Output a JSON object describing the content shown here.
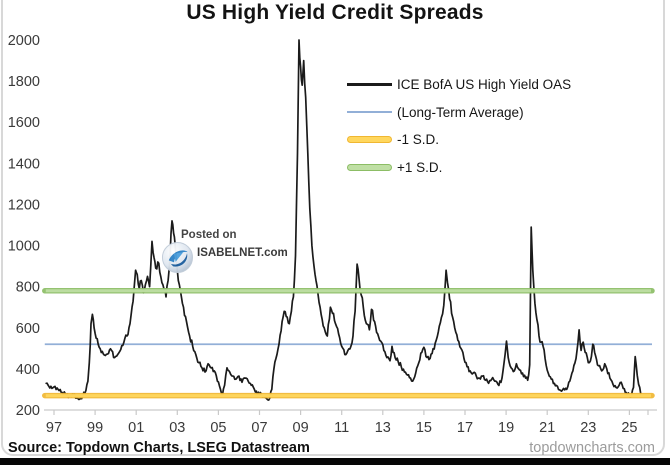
{
  "header": {
    "title": "US High Yield Credit Spreads"
  },
  "watermark": {
    "line1": "Posted on",
    "line2": "ISABELNET.com"
  },
  "footer": {
    "source": "Source: Topdown Charts, LSEG Datastream",
    "website": "topdowncharts.com"
  },
  "colors": {
    "series": "#1b1b1b",
    "average_line": "#92afd7",
    "minus_sd_fill": "#ffd75e",
    "minus_sd_edge": "#f0b732",
    "plus_sd_fill": "#bfdfa4",
    "plus_sd_edge": "#8cbd65",
    "axis": "#c9c9c9",
    "tick_text": "#3a3a3a"
  },
  "chart_data": {
    "type": "line",
    "title": "US High Yield Credit Spreads",
    "xlabel": "",
    "ylabel": "",
    "grid": false,
    "y_axis": {
      "min": 200,
      "max": 2000,
      "ticks": [
        2000,
        1800,
        1600,
        1400,
        1200,
        1000,
        800,
        600,
        400,
        200
      ]
    },
    "x_axis": {
      "tick_years": [
        1997,
        1999,
        2001,
        2003,
        2005,
        2007,
        2009,
        2011,
        2013,
        2015,
        2017,
        2019,
        2021,
        2023,
        2025
      ],
      "tick_labels": [
        "97",
        "99",
        "01",
        "03",
        "05",
        "07",
        "09",
        "11",
        "13",
        "15",
        "17",
        "19",
        "21",
        "23",
        "25"
      ],
      "start": 1996.6,
      "end": 2025.6
    },
    "legend": {
      "position": "upper-right",
      "entries": [
        {
          "label": "ICE BofA US High Yield OAS",
          "swatch": "line",
          "thickness": 2.6,
          "color": "#1b1b1b"
        },
        {
          "label": "(Long-Term Average)",
          "swatch": "line",
          "thickness": 2.2,
          "color": "#92afd7"
        },
        {
          "label": "-1 S.D.",
          "swatch": "band",
          "color": "#ffd75e",
          "edge": "#f0b732"
        },
        {
          "label": "+1 S.D.",
          "swatch": "band",
          "color": "#bfdfa4",
          "edge": "#8cbd65"
        }
      ]
    },
    "reference_lines": {
      "long_term_average": 520,
      "minus_1_sd": 270,
      "plus_1_sd": 780
    },
    "series": [
      {
        "name": "ICE BofA US High Yield OAS",
        "color": "#1b1b1b",
        "points": [
          [
            1996.62,
            330
          ],
          [
            1996.75,
            315
          ],
          [
            1996.9,
            305
          ],
          [
            1997.05,
            315
          ],
          [
            1997.2,
            300
          ],
          [
            1997.4,
            285
          ],
          [
            1997.6,
            272
          ],
          [
            1997.8,
            268
          ],
          [
            1997.95,
            275
          ],
          [
            1998.1,
            258
          ],
          [
            1998.25,
            252
          ],
          [
            1998.4,
            268
          ],
          [
            1998.55,
            295
          ],
          [
            1998.65,
            340
          ],
          [
            1998.72,
            430
          ],
          [
            1998.8,
            620
          ],
          [
            1998.87,
            665
          ],
          [
            1998.95,
            600
          ],
          [
            1999.05,
            550
          ],
          [
            1999.2,
            505
          ],
          [
            1999.35,
            485
          ],
          [
            1999.5,
            465
          ],
          [
            1999.65,
            475
          ],
          [
            1999.8,
            490
          ],
          [
            1999.95,
            455
          ],
          [
            2000.1,
            470
          ],
          [
            2000.25,
            495
          ],
          [
            2000.4,
            530
          ],
          [
            2000.55,
            560
          ],
          [
            2000.7,
            620
          ],
          [
            2000.85,
            730
          ],
          [
            2000.97,
            880
          ],
          [
            2001.05,
            860
          ],
          [
            2001.15,
            790
          ],
          [
            2001.25,
            830
          ],
          [
            2001.35,
            770
          ],
          [
            2001.45,
            810
          ],
          [
            2001.55,
            850
          ],
          [
            2001.65,
            800
          ],
          [
            2001.77,
            1020
          ],
          [
            2001.87,
            940
          ],
          [
            2001.95,
            890
          ],
          [
            2002.05,
            920
          ],
          [
            2002.15,
            870
          ],
          [
            2002.25,
            820
          ],
          [
            2002.35,
            790
          ],
          [
            2002.45,
            750
          ],
          [
            2002.55,
            830
          ],
          [
            2002.65,
            950
          ],
          [
            2002.74,
            1120
          ],
          [
            2002.82,
            1060
          ],
          [
            2002.9,
            1000
          ],
          [
            2003.0,
            880
          ],
          [
            2003.15,
            780
          ],
          [
            2003.3,
            700
          ],
          [
            2003.45,
            630
          ],
          [
            2003.6,
            560
          ],
          [
            2003.75,
            510
          ],
          [
            2003.9,
            470
          ],
          [
            2004.05,
            430
          ],
          [
            2004.2,
            405
          ],
          [
            2004.35,
            385
          ],
          [
            2004.5,
            425
          ],
          [
            2004.65,
            405
          ],
          [
            2004.8,
            390
          ],
          [
            2004.95,
            340
          ],
          [
            2005.1,
            300
          ],
          [
            2005.2,
            275
          ],
          [
            2005.3,
            320
          ],
          [
            2005.42,
            405
          ],
          [
            2005.55,
            385
          ],
          [
            2005.7,
            365
          ],
          [
            2005.85,
            350
          ],
          [
            2006.0,
            365
          ],
          [
            2006.15,
            335
          ],
          [
            2006.3,
            355
          ],
          [
            2006.45,
            340
          ],
          [
            2006.6,
            320
          ],
          [
            2006.75,
            300
          ],
          [
            2006.9,
            275
          ],
          [
            2007.05,
            285
          ],
          [
            2007.2,
            265
          ],
          [
            2007.35,
            255
          ],
          [
            2007.45,
            248
          ],
          [
            2007.6,
            300
          ],
          [
            2007.7,
            400
          ],
          [
            2007.8,
            450
          ],
          [
            2007.95,
            520
          ],
          [
            2008.1,
            630
          ],
          [
            2008.2,
            680
          ],
          [
            2008.3,
            655
          ],
          [
            2008.45,
            620
          ],
          [
            2008.55,
            680
          ],
          [
            2008.65,
            750
          ],
          [
            2008.75,
            950
          ],
          [
            2008.85,
            1450
          ],
          [
            2008.92,
            2000
          ],
          [
            2009.0,
            1870
          ],
          [
            2009.08,
            1780
          ],
          [
            2009.15,
            1900
          ],
          [
            2009.25,
            1720
          ],
          [
            2009.35,
            1450
          ],
          [
            2009.45,
            1180
          ],
          [
            2009.55,
            1000
          ],
          [
            2009.65,
            900
          ],
          [
            2009.75,
            830
          ],
          [
            2009.85,
            760
          ],
          [
            2009.95,
            700
          ],
          [
            2010.05,
            640
          ],
          [
            2010.15,
            600
          ],
          [
            2010.3,
            560
          ],
          [
            2010.45,
            700
          ],
          [
            2010.55,
            670
          ],
          [
            2010.7,
            620
          ],
          [
            2010.85,
            570
          ],
          [
            2011.0,
            510
          ],
          [
            2011.15,
            470
          ],
          [
            2011.3,
            490
          ],
          [
            2011.45,
            510
          ],
          [
            2011.55,
            560
          ],
          [
            2011.65,
            680
          ],
          [
            2011.75,
            910
          ],
          [
            2011.85,
            830
          ],
          [
            2011.95,
            760
          ],
          [
            2012.05,
            700
          ],
          [
            2012.2,
            620
          ],
          [
            2012.35,
            590
          ],
          [
            2012.45,
            690
          ],
          [
            2012.6,
            630
          ],
          [
            2012.75,
            570
          ],
          [
            2012.9,
            535
          ],
          [
            2013.05,
            490
          ],
          [
            2013.2,
            455
          ],
          [
            2013.35,
            440
          ],
          [
            2013.45,
            510
          ],
          [
            2013.6,
            455
          ],
          [
            2013.75,
            435
          ],
          [
            2013.9,
            410
          ],
          [
            2014.05,
            385
          ],
          [
            2014.2,
            370
          ],
          [
            2014.35,
            355
          ],
          [
            2014.45,
            340
          ],
          [
            2014.6,
            380
          ],
          [
            2014.75,
            430
          ],
          [
            2014.9,
            480
          ],
          [
            2015.0,
            505
          ],
          [
            2015.1,
            460
          ],
          [
            2015.25,
            445
          ],
          [
            2015.4,
            475
          ],
          [
            2015.55,
            525
          ],
          [
            2015.7,
            580
          ],
          [
            2015.85,
            650
          ],
          [
            2015.97,
            710
          ],
          [
            2016.08,
            880
          ],
          [
            2016.15,
            820
          ],
          [
            2016.25,
            740
          ],
          [
            2016.4,
            650
          ],
          [
            2016.5,
            600
          ],
          [
            2016.65,
            540
          ],
          [
            2016.8,
            500
          ],
          [
            2016.95,
            450
          ],
          [
            2017.1,
            410
          ],
          [
            2017.25,
            390
          ],
          [
            2017.4,
            380
          ],
          [
            2017.55,
            365
          ],
          [
            2017.7,
            355
          ],
          [
            2017.85,
            365
          ],
          [
            2018.0,
            345
          ],
          [
            2018.15,
            330
          ],
          [
            2018.3,
            350
          ],
          [
            2018.45,
            340
          ],
          [
            2018.6,
            325
          ],
          [
            2018.75,
            335
          ],
          [
            2018.85,
            390
          ],
          [
            2018.95,
            470
          ],
          [
            2019.02,
            535
          ],
          [
            2019.1,
            455
          ],
          [
            2019.25,
            405
          ],
          [
            2019.4,
            390
          ],
          [
            2019.5,
            425
          ],
          [
            2019.65,
            395
          ],
          [
            2019.8,
            380
          ],
          [
            2019.95,
            355
          ],
          [
            2020.05,
            345
          ],
          [
            2020.15,
            420
          ],
          [
            2020.22,
            1090
          ],
          [
            2020.3,
            880
          ],
          [
            2020.4,
            720
          ],
          [
            2020.5,
            640
          ],
          [
            2020.6,
            560
          ],
          [
            2020.7,
            530
          ],
          [
            2020.8,
            510
          ],
          [
            2020.9,
            450
          ],
          [
            2021.05,
            380
          ],
          [
            2021.2,
            350
          ],
          [
            2021.35,
            330
          ],
          [
            2021.5,
            315
          ],
          [
            2021.65,
            295
          ],
          [
            2021.8,
            305
          ],
          [
            2021.95,
            300
          ],
          [
            2022.1,
            340
          ],
          [
            2022.25,
            390
          ],
          [
            2022.4,
            450
          ],
          [
            2022.5,
            530
          ],
          [
            2022.55,
            590
          ],
          [
            2022.65,
            490
          ],
          [
            2022.75,
            530
          ],
          [
            2022.85,
            480
          ],
          [
            2022.95,
            455
          ],
          [
            2023.05,
            430
          ],
          [
            2023.15,
            460
          ],
          [
            2023.22,
            520
          ],
          [
            2023.35,
            465
          ],
          [
            2023.5,
            415
          ],
          [
            2023.65,
            390
          ],
          [
            2023.8,
            425
          ],
          [
            2023.9,
            400
          ],
          [
            2024.05,
            355
          ],
          [
            2024.2,
            325
          ],
          [
            2024.35,
            310
          ],
          [
            2024.5,
            320
          ],
          [
            2024.6,
            335
          ],
          [
            2024.7,
            305
          ],
          [
            2024.85,
            285
          ],
          [
            2025.0,
            268
          ],
          [
            2025.1,
            272
          ],
          [
            2025.2,
            310
          ],
          [
            2025.28,
            460
          ],
          [
            2025.38,
            370
          ],
          [
            2025.45,
            325
          ],
          [
            2025.55,
            280
          ]
        ]
      }
    ]
  }
}
